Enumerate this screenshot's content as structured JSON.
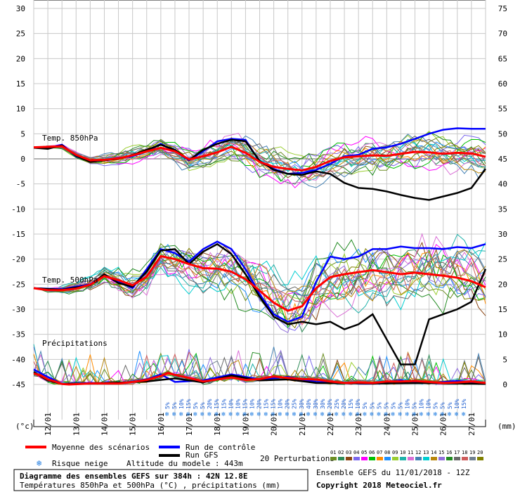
{
  "chart_data": {
    "type": "line",
    "title": "Diagramme des ensembles GEFS sur 384h : 42N 12.8E",
    "subtitle": "Températures 850hPa et 500hPa (°C) , précipitations (mm)",
    "run_info": "Ensemble GEFS du 11/01/2018 - 12Z",
    "copyright": "Copyright 2018 Meteociel.fr",
    "altitude_label": "Altitude du modele : 443m",
    "left_axis_unit": "(°c)",
    "right_axis_unit": "(mm)",
    "left_ticks": [
      30,
      25,
      20,
      15,
      10,
      5,
      0,
      -5,
      -10,
      -15,
      -20,
      -25,
      -30,
      -35,
      -40,
      -45
    ],
    "right_ticks": [
      75,
      70,
      65,
      60,
      55,
      50,
      45,
      40,
      35,
      30,
      25,
      20,
      15,
      10,
      5,
      0
    ],
    "ylim": [
      -45,
      30
    ],
    "x_labels": [
      "12/01",
      "13/01",
      "14/01",
      "15/01",
      "16/01",
      "17/01",
      "18/01",
      "19/01",
      "20/01",
      "21/01",
      "22/01",
      "23/01",
      "24/01",
      "25/01",
      "26/01",
      "27/01"
    ],
    "x_hours": [
      0,
      384
    ],
    "section_labels": {
      "t850": "Temp. 850hPa",
      "t500": "Temp. 500hPa",
      "precip": "Précipitations"
    },
    "snow_risk_pct": [
      "5%",
      "5%",
      "10%",
      "15%",
      "5%",
      "5%",
      "20%",
      "15%",
      "15%",
      "10%",
      "10%",
      "15%",
      "10%",
      "20%",
      "15%",
      "15%",
      "10%",
      "20%",
      "25%",
      "30%",
      "40%",
      "30%",
      "30%",
      "20%",
      "25%",
      "20%",
      "15%",
      "10%",
      "5%",
      "5%",
      "5%",
      "5%",
      "5%",
      "5%",
      "10%",
      "5%",
      "10%",
      "10%",
      "5%",
      "5%",
      "5%",
      "10%",
      "15%"
    ],
    "series": [
      {
        "name": "Moyenne des scénarios",
        "color": "#ff0000",
        "t850": [
          [
            0,
            2.3
          ],
          [
            12,
            2.4
          ],
          [
            24,
            2.5
          ],
          [
            36,
            0.8
          ],
          [
            48,
            -0.3
          ],
          [
            60,
            -0.2
          ],
          [
            72,
            0.1
          ],
          [
            84,
            0.7
          ],
          [
            96,
            1.5
          ],
          [
            108,
            2.2
          ],
          [
            120,
            1.5
          ],
          [
            132,
            -0.1
          ],
          [
            144,
            0.5
          ],
          [
            156,
            1.3
          ],
          [
            168,
            2.4
          ],
          [
            180,
            1.2
          ],
          [
            192,
            -0.6
          ],
          [
            204,
            -1.6
          ],
          [
            216,
            -2.0
          ],
          [
            228,
            -2.3
          ],
          [
            240,
            -1.6
          ],
          [
            252,
            -0.4
          ],
          [
            264,
            0.3
          ],
          [
            276,
            0.5
          ],
          [
            288,
            0.7
          ],
          [
            300,
            0.6
          ],
          [
            312,
            1.0
          ],
          [
            324,
            1.4
          ],
          [
            336,
            1.3
          ],
          [
            348,
            1.0
          ],
          [
            360,
            1.2
          ],
          [
            372,
            1.1
          ],
          [
            384,
            0.4
          ]
        ],
        "t500": [
          [
            0,
            -25.8
          ],
          [
            12,
            -26.2
          ],
          [
            24,
            -26.2
          ],
          [
            36,
            -25.9
          ],
          [
            48,
            -25.1
          ],
          [
            60,
            -23.4
          ],
          [
            72,
            -24.2
          ],
          [
            84,
            -25.2
          ],
          [
            96,
            -23.5
          ],
          [
            108,
            -19.4
          ],
          [
            120,
            -20.0
          ],
          [
            132,
            -21.0
          ],
          [
            144,
            -21.8
          ],
          [
            156,
            -21.9
          ],
          [
            168,
            -22.5
          ],
          [
            180,
            -24.0
          ],
          [
            192,
            -26.3
          ],
          [
            204,
            -28.7
          ],
          [
            216,
            -30.3
          ],
          [
            228,
            -29.4
          ],
          [
            240,
            -25.8
          ],
          [
            252,
            -23.6
          ],
          [
            264,
            -23.0
          ],
          [
            276,
            -22.6
          ],
          [
            288,
            -22.2
          ],
          [
            300,
            -22.6
          ],
          [
            312,
            -23.0
          ],
          [
            324,
            -22.7
          ],
          [
            336,
            -23.0
          ],
          [
            348,
            -23.3
          ],
          [
            360,
            -23.7
          ],
          [
            372,
            -24.4
          ],
          [
            384,
            -25.6
          ]
        ],
        "precip": [
          [
            0,
            2.2
          ],
          [
            6,
            1.8
          ],
          [
            12,
            1.0
          ],
          [
            18,
            0.6
          ],
          [
            24,
            0.1
          ],
          [
            30,
            0
          ],
          [
            48,
            0.2
          ],
          [
            72,
            0.2
          ],
          [
            84,
            0.5
          ],
          [
            96,
            0.9
          ],
          [
            108,
            1.7
          ],
          [
            114,
            2.3
          ],
          [
            120,
            1.9
          ],
          [
            132,
            1.3
          ],
          [
            144,
            0.6
          ],
          [
            156,
            1.0
          ],
          [
            168,
            1.4
          ],
          [
            180,
            0.9
          ],
          [
            192,
            1.1
          ],
          [
            204,
            1.6
          ],
          [
            216,
            1.3
          ],
          [
            228,
            1.1
          ],
          [
            240,
            1.0
          ],
          [
            252,
            0.6
          ],
          [
            264,
            0.3
          ],
          [
            276,
            0.4
          ],
          [
            288,
            0.3
          ],
          [
            300,
            0.6
          ],
          [
            312,
            0.6
          ],
          [
            324,
            0.7
          ],
          [
            336,
            0.5
          ],
          [
            348,
            0.3
          ],
          [
            360,
            0.4
          ],
          [
            372,
            0.6
          ],
          [
            384,
            0.3
          ]
        ]
      },
      {
        "name": "Run de contrôle",
        "color": "#0000ff",
        "t850": [
          [
            0,
            2.2
          ],
          [
            12,
            2.2
          ],
          [
            24,
            2.8
          ],
          [
            36,
            0.5
          ],
          [
            48,
            -0.5
          ],
          [
            60,
            -0.2
          ],
          [
            72,
            0.2
          ],
          [
            84,
            0.5
          ],
          [
            96,
            1.5
          ],
          [
            108,
            3.0
          ],
          [
            120,
            1.5
          ],
          [
            132,
            -0.3
          ],
          [
            144,
            1.5
          ],
          [
            156,
            3.5
          ],
          [
            168,
            4.0
          ],
          [
            180,
            3.8
          ],
          [
            192,
            -0.6
          ],
          [
            204,
            -2.0
          ],
          [
            216,
            -3.0
          ],
          [
            228,
            -2.8
          ],
          [
            240,
            -2.2
          ],
          [
            252,
            -1.0
          ],
          [
            264,
            0.5
          ],
          [
            276,
            0.8
          ],
          [
            288,
            2.0
          ],
          [
            300,
            2.3
          ],
          [
            312,
            3.0
          ],
          [
            324,
            4.0
          ],
          [
            336,
            5.0
          ],
          [
            348,
            5.8
          ],
          [
            360,
            6.1
          ],
          [
            372,
            6.0
          ],
          [
            384,
            6.0
          ]
        ],
        "t500": [
          [
            0,
            -25.8
          ],
          [
            24,
            -26.0
          ],
          [
            48,
            -25.0
          ],
          [
            60,
            -23.2
          ],
          [
            72,
            -24.5
          ],
          [
            84,
            -25.8
          ],
          [
            96,
            -22.0
          ],
          [
            108,
            -18.0
          ],
          [
            120,
            -18.8
          ],
          [
            132,
            -20.5
          ],
          [
            144,
            -18.0
          ],
          [
            156,
            -16.5
          ],
          [
            168,
            -18.0
          ],
          [
            180,
            -22.0
          ],
          [
            192,
            -27.0
          ],
          [
            204,
            -31.0
          ],
          [
            216,
            -32.5
          ],
          [
            228,
            -31.5
          ],
          [
            240,
            -24.5
          ],
          [
            252,
            -19.5
          ],
          [
            264,
            -20.0
          ],
          [
            276,
            -19.5
          ],
          [
            288,
            -18.0
          ],
          [
            300,
            -18.0
          ],
          [
            312,
            -17.5
          ],
          [
            324,
            -17.8
          ],
          [
            336,
            -17.8
          ],
          [
            348,
            -18.0
          ],
          [
            360,
            -17.6
          ],
          [
            372,
            -17.8
          ],
          [
            384,
            -17.0
          ]
        ],
        "precip": [
          [
            0,
            3.0
          ],
          [
            12,
            1.5
          ],
          [
            24,
            0.1
          ],
          [
            48,
            0.3
          ],
          [
            72,
            0.2
          ],
          [
            96,
            1.0
          ],
          [
            108,
            2.0
          ],
          [
            120,
            0.5
          ],
          [
            144,
            0.8
          ],
          [
            168,
            2.0
          ],
          [
            192,
            1.0
          ],
          [
            216,
            1.5
          ],
          [
            240,
            0.5
          ],
          [
            264,
            0.3
          ],
          [
            288,
            0.2
          ],
          [
            312,
            0.8
          ],
          [
            336,
            0.3
          ],
          [
            360,
            0.7
          ],
          [
            384,
            0.2
          ]
        ]
      },
      {
        "name": "Run GFS",
        "color": "#000000",
        "t850": [
          [
            0,
            2.2
          ],
          [
            12,
            2.0
          ],
          [
            24,
            2.7
          ],
          [
            36,
            0.6
          ],
          [
            48,
            -0.6
          ],
          [
            60,
            -0.3
          ],
          [
            72,
            0.0
          ],
          [
            84,
            0.8
          ],
          [
            96,
            1.8
          ],
          [
            108,
            2.8
          ],
          [
            120,
            1.8
          ],
          [
            132,
            -0.2
          ],
          [
            144,
            1.8
          ],
          [
            156,
            3.0
          ],
          [
            168,
            3.8
          ],
          [
            180,
            3.5
          ],
          [
            192,
            -0.4
          ],
          [
            204,
            -2.2
          ],
          [
            216,
            -3.0
          ],
          [
            228,
            -3.2
          ],
          [
            240,
            -2.5
          ],
          [
            252,
            -3.0
          ],
          [
            264,
            -4.8
          ],
          [
            276,
            -5.8
          ],
          [
            288,
            -6.0
          ],
          [
            300,
            -6.5
          ],
          [
            312,
            -7.2
          ],
          [
            324,
            -7.8
          ],
          [
            336,
            -8.2
          ],
          [
            348,
            -7.5
          ],
          [
            360,
            -6.8
          ],
          [
            372,
            -5.8
          ],
          [
            384,
            -2.0
          ]
        ],
        "t500": [
          [
            0,
            -25.8
          ],
          [
            24,
            -26.1
          ],
          [
            48,
            -25.2
          ],
          [
            60,
            -23.0
          ],
          [
            72,
            -24.8
          ],
          [
            84,
            -25.5
          ],
          [
            96,
            -22.5
          ],
          [
            108,
            -18.3
          ],
          [
            120,
            -18.0
          ],
          [
            132,
            -21.0
          ],
          [
            144,
            -18.5
          ],
          [
            156,
            -17.0
          ],
          [
            168,
            -19.0
          ],
          [
            180,
            -23.0
          ],
          [
            192,
            -27.5
          ],
          [
            204,
            -31.5
          ],
          [
            216,
            -33.0
          ],
          [
            228,
            -32.5
          ],
          [
            240,
            -33.0
          ],
          [
            252,
            -32.5
          ],
          [
            264,
            -34.0
          ],
          [
            276,
            -33.0
          ],
          [
            288,
            -31.0
          ],
          [
            300,
            -36.0
          ],
          [
            312,
            -41.0
          ],
          [
            324,
            -41.0
          ],
          [
            336,
            -32.0
          ],
          [
            348,
            -31.0
          ],
          [
            360,
            -30.0
          ],
          [
            372,
            -28.5
          ],
          [
            384,
            -22.0
          ]
        ],
        "precip": [
          [
            0,
            2.5
          ],
          [
            12,
            0.8
          ],
          [
            24,
            0.1
          ],
          [
            48,
            0.2
          ],
          [
            96,
            0.6
          ],
          [
            120,
            1.2
          ],
          [
            144,
            0.4
          ],
          [
            168,
            1.8
          ],
          [
            192,
            0.8
          ],
          [
            216,
            1.0
          ],
          [
            240,
            0.3
          ],
          [
            288,
            0.2
          ],
          [
            336,
            0.3
          ],
          [
            384,
            0.1
          ]
        ]
      }
    ],
    "perturbations_label": "20 Perturbations",
    "perturbation_numbers": [
      "01",
      "02",
      "03",
      "04",
      "05",
      "06",
      "07",
      "08",
      "09",
      "10",
      "11",
      "12",
      "13",
      "14",
      "15",
      "16",
      "17",
      "18",
      "19",
      "20"
    ],
    "perturbation_colors": [
      "#6b8e23",
      "#2e8b57",
      "#8b4513",
      "#7b68ee",
      "#ff00ff",
      "#00c000",
      "#ff8c00",
      "#1e90ff",
      "#9acd32",
      "#20b2aa",
      "#da70d6",
      "#4682b4",
      "#00ced1",
      "#b8860b",
      "#9370db",
      "#228b22",
      "#696969",
      "#cd5c5c",
      "#708090",
      "#808000"
    ],
    "legend_snow": "Risque neige",
    "grid": true,
    "legend_position": "bottom"
  }
}
